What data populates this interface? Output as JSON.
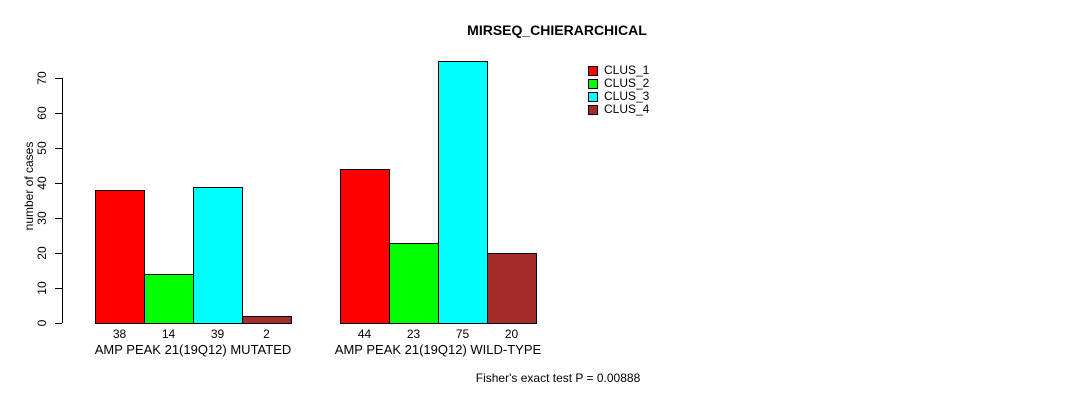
{
  "title": "MIRSEQ_CHIERARCHICAL",
  "footnote": "Fisher's exact test P = 0.00888",
  "colors": {
    "background": "#ffffff",
    "axis": "#000000",
    "bar_border": "#000000",
    "clus_1": "#ff0000",
    "clus_2": "#00ff00",
    "clus_3": "#00ffff",
    "clus_4": "#a52a2a"
  },
  "chart_data": {
    "type": "bar",
    "title": "MIRSEQ_CHIERARCHICAL",
    "xlabel": "",
    "ylabel": "number of cases",
    "ylim": [
      0,
      70
    ],
    "yticks": [
      0,
      10,
      20,
      30,
      40,
      50,
      60,
      70
    ],
    "grid": false,
    "legend_position": "top-right",
    "categories": [
      "AMP PEAK 21(19Q12) MUTATED",
      "AMP PEAK 21(19Q12) WILD-TYPE"
    ],
    "series": [
      {
        "name": "CLUS_1",
        "color": "#ff0000",
        "values": [
          38,
          44
        ]
      },
      {
        "name": "CLUS_2",
        "color": "#00ff00",
        "values": [
          14,
          23
        ]
      },
      {
        "name": "CLUS_3",
        "color": "#00ffff",
        "values": [
          39,
          75
        ]
      },
      {
        "name": "CLUS_4",
        "color": "#a52a2a",
        "values": [
          2,
          20
        ]
      }
    ],
    "value_labels": [
      [
        38,
        14,
        39,
        2
      ],
      [
        44,
        23,
        75,
        20
      ]
    ],
    "annotation": "Fisher's exact test P = 0.00888"
  }
}
